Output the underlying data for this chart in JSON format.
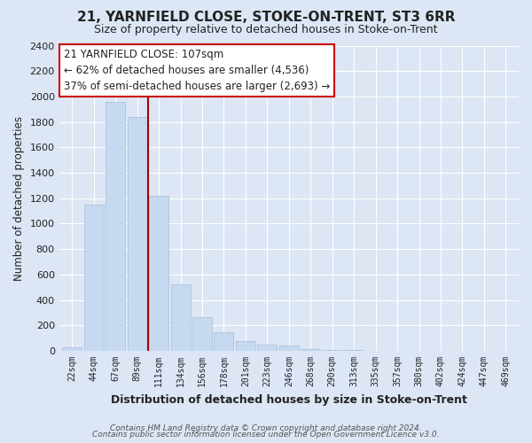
{
  "title_line1": "21, YARNFIELD CLOSE, STOKE-ON-TRENT, ST3 6RR",
  "title_line2": "Size of property relative to detached houses in Stoke-on-Trent",
  "xlabel": "Distribution of detached houses by size in Stoke-on-Trent",
  "ylabel": "Number of detached properties",
  "bar_labels": [
    "22sqm",
    "44sqm",
    "67sqm",
    "89sqm",
    "111sqm",
    "134sqm",
    "156sqm",
    "178sqm",
    "201sqm",
    "223sqm",
    "246sqm",
    "268sqm",
    "290sqm",
    "313sqm",
    "335sqm",
    "357sqm",
    "380sqm",
    "402sqm",
    "424sqm",
    "447sqm",
    "469sqm"
  ],
  "bar_values": [
    25,
    1150,
    1960,
    1840,
    1220,
    520,
    265,
    148,
    78,
    50,
    40,
    15,
    8,
    5,
    3,
    2,
    2,
    1,
    1,
    1,
    1
  ],
  "bar_color": "#c5d9f1",
  "bar_edge_color": "#aabcd8",
  "vline_color": "#aa0000",
  "vline_x_index": 3.5,
  "ylim": [
    0,
    2400
  ],
  "yticks": [
    0,
    200,
    400,
    600,
    800,
    1000,
    1200,
    1400,
    1600,
    1800,
    2000,
    2200,
    2400
  ],
  "annotation_title": "21 YARNFIELD CLOSE: 107sqm",
  "annotation_line1": "← 62% of detached houses are smaller (4,536)",
  "annotation_line2": "37% of semi-detached houses are larger (2,693) →",
  "annotation_box_color": "#ffffff",
  "annotation_box_edgecolor": "#cc0000",
  "footer_line1": "Contains HM Land Registry data © Crown copyright and database right 2024.",
  "footer_line2": "Contains public sector information licensed under the Open Government Licence v3.0.",
  "background_color": "#dce6f5",
  "grid_color": "#ffffff",
  "title_fontsize": 11,
  "subtitle_fontsize": 9
}
